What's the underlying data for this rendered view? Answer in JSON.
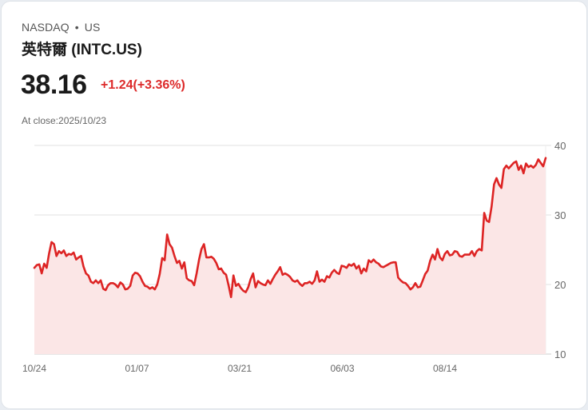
{
  "header": {
    "exchange": "NASDAQ",
    "separator": "•",
    "region": "US",
    "title": "英特爾 (INTC.US)",
    "price": "38.16",
    "change": "+1.24(+3.36%)",
    "close_label": "At close:2025/10/23"
  },
  "colors": {
    "line": "#dd2424",
    "fill": "#fbe6e6",
    "change": "#dd2a2a",
    "grid": "#e2e2e2"
  },
  "chart_data": {
    "type": "area",
    "title": "英特爾 (INTC.US)",
    "xlabel": "",
    "ylabel": "",
    "ylim": [
      10,
      40
    ],
    "yticks": [
      10,
      20,
      30,
      40
    ],
    "grid": true,
    "y_axis_position": "right",
    "x_tick_labels": [
      "10/24",
      "01/07",
      "03/21",
      "06/03",
      "08/14"
    ],
    "x_tick_index": [
      0,
      50,
      100,
      150,
      200
    ],
    "series": [
      {
        "name": "INTC",
        "values": [
          22.4,
          22.8,
          22.9,
          21.6,
          23.0,
          22.4,
          24.5,
          26.1,
          25.8,
          24.1,
          24.8,
          24.5,
          24.9,
          24.1,
          24.4,
          24.3,
          24.6,
          23.6,
          23.9,
          24.1,
          22.6,
          21.6,
          21.3,
          20.4,
          20.2,
          20.6,
          20.2,
          20.6,
          19.4,
          19.2,
          19.9,
          20.2,
          20.2,
          20.0,
          19.6,
          20.3,
          20.0,
          19.3,
          19.4,
          19.8,
          21.3,
          21.7,
          21.6,
          21.2,
          20.4,
          19.8,
          19.7,
          19.4,
          19.6,
          19.3,
          20.0,
          21.5,
          23.8,
          23.5,
          27.2,
          25.8,
          25.3,
          24.1,
          23.1,
          23.4,
          22.3,
          23.2,
          20.9,
          20.6,
          20.5,
          19.9,
          21.6,
          23.6,
          25.1,
          25.8,
          23.9,
          23.9,
          24.0,
          23.7,
          23.1,
          22.2,
          22.3,
          21.7,
          21.4,
          19.9,
          18.2,
          21.3,
          19.8,
          20.1,
          19.5,
          19.1,
          18.9,
          19.6,
          20.8,
          21.6,
          19.6,
          20.5,
          20.2,
          20.0,
          19.9,
          20.6,
          20.1,
          20.8,
          21.4,
          21.9,
          22.5,
          21.4,
          21.6,
          21.4,
          21.1,
          20.6,
          20.4,
          20.6,
          20.1,
          19.8,
          20.2,
          20.2,
          20.4,
          20.1,
          20.6,
          21.9,
          20.4,
          20.7,
          20.4,
          21.2,
          21.0,
          21.7,
          22.1,
          21.7,
          21.5,
          22.7,
          22.6,
          22.4,
          22.9,
          22.7,
          23.0,
          22.3,
          22.7,
          21.6,
          22.3,
          21.9,
          23.5,
          23.2,
          23.6,
          23.2,
          23.0,
          22.6,
          22.5,
          22.7,
          22.9,
          23.1,
          23.2,
          23.2,
          21.0,
          20.6,
          20.3,
          20.2,
          19.8,
          19.3,
          19.6,
          20.2,
          19.6,
          19.7,
          20.6,
          21.5,
          22.0,
          23.4,
          24.3,
          23.6,
          25.1,
          23.9,
          23.5,
          24.4,
          24.8,
          24.2,
          24.3,
          24.8,
          24.7,
          24.1,
          24.0,
          24.3,
          24.3,
          24.3,
          24.8,
          24.1,
          24.8,
          25.1,
          24.9,
          30.3,
          29.2,
          29.0,
          31.2,
          34.4,
          35.3,
          34.4,
          33.9,
          36.6,
          37.1,
          36.7,
          37.1,
          37.5,
          37.7,
          36.5,
          37.1,
          36.0,
          37.4,
          36.9,
          37.1,
          36.8,
          37.2,
          38.0,
          37.5,
          37.0,
          38.2
        ]
      }
    ]
  }
}
